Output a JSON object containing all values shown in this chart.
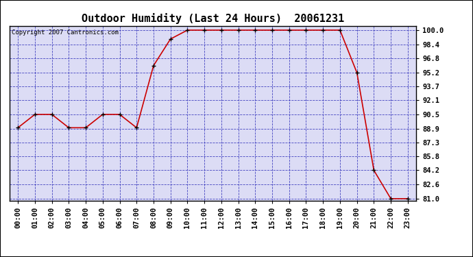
{
  "title": "Outdoor Humidity (Last 24 Hours)  20061231",
  "copyright_text": "Copyright 2007 Cantronics.com",
  "x_labels": [
    "00:00",
    "01:00",
    "02:00",
    "03:00",
    "04:00",
    "05:00",
    "06:00",
    "07:00",
    "08:00",
    "09:00",
    "10:00",
    "11:00",
    "12:00",
    "13:00",
    "14:00",
    "15:00",
    "16:00",
    "17:00",
    "18:00",
    "19:00",
    "20:00",
    "21:00",
    "22:00",
    "23:00"
  ],
  "x_values": [
    0,
    1,
    2,
    3,
    4,
    5,
    6,
    7,
    8,
    9,
    10,
    11,
    12,
    13,
    14,
    15,
    16,
    17,
    18,
    19,
    20,
    21,
    22,
    23
  ],
  "y_values": [
    89.0,
    90.5,
    90.5,
    89.0,
    89.0,
    90.5,
    90.5,
    89.0,
    96.0,
    99.0,
    100.0,
    100.0,
    100.0,
    100.0,
    100.0,
    100.0,
    100.0,
    100.0,
    100.0,
    100.0,
    95.2,
    84.2,
    81.0,
    81.0
  ],
  "y_min": 81.0,
  "y_max": 100.0,
  "y_ticks": [
    81.0,
    82.6,
    84.2,
    85.8,
    87.3,
    88.9,
    90.5,
    92.1,
    93.7,
    95.2,
    96.8,
    98.4,
    100.0
  ],
  "line_color": "#cc0000",
  "marker_color": "#000000",
  "marker_size": 3,
  "bg_color": "#ffffff",
  "plot_bg_color": "#dcdcf5",
  "grid_color": "#3333bb",
  "border_color": "#000000",
  "title_fontsize": 11,
  "tick_label_fontsize": 7.5,
  "copyright_fontsize": 6.5
}
